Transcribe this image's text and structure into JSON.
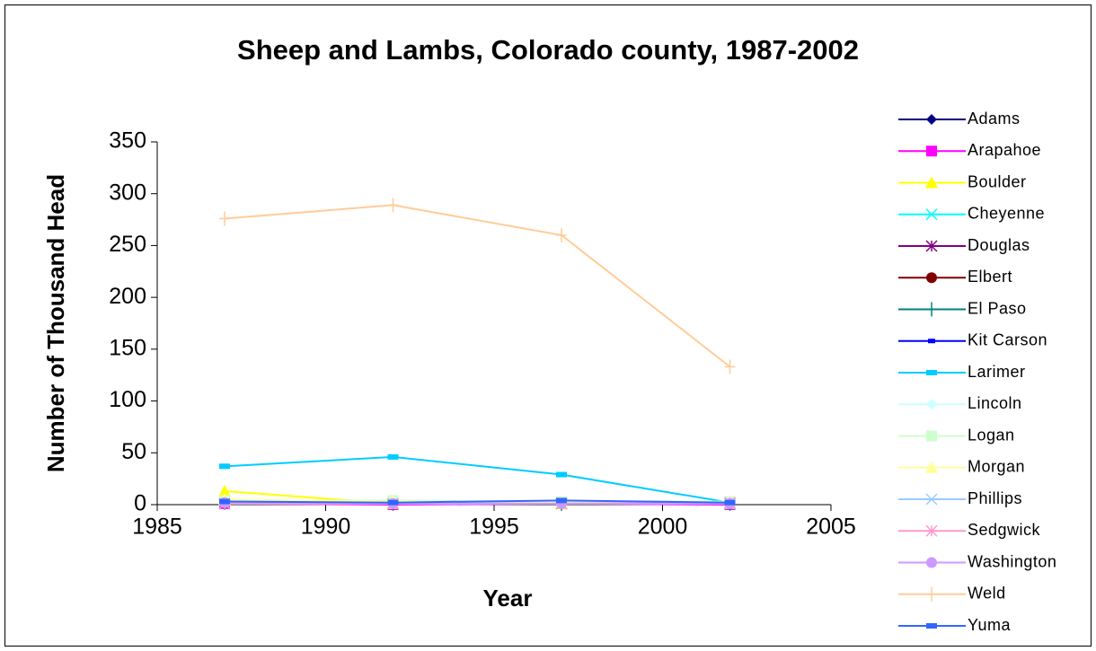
{
  "chart_data": {
    "type": "line",
    "title": "Sheep and Lambs, Colorado county, 1987-2002",
    "x_label": "Year",
    "y_label": "Number of Thousand Head",
    "x": [
      1987,
      1992,
      1997,
      2002
    ],
    "xlim": [
      1985,
      2005
    ],
    "xticks": [
      1985,
      1990,
      1995,
      2000,
      2005
    ],
    "ylim": [
      0,
      350
    ],
    "yticks": [
      0,
      50,
      100,
      150,
      200,
      250,
      300,
      350
    ],
    "grid": false,
    "legend": "right",
    "series": [
      {
        "name": "Adams",
        "color": "#000080",
        "marker": "diamond",
        "values": [
          2,
          1,
          1,
          1
        ]
      },
      {
        "name": "Arapahoe",
        "color": "#FF00FF",
        "marker": "square",
        "values": [
          1,
          0,
          1,
          0
        ]
      },
      {
        "name": "Boulder",
        "color": "#FFFF00",
        "marker": "triangle",
        "values": [
          13,
          1,
          1,
          1
        ]
      },
      {
        "name": "Cheyenne",
        "color": "#00FFFF",
        "marker": "x",
        "values": [
          1,
          1,
          1,
          1
        ]
      },
      {
        "name": "Douglas",
        "color": "#800080",
        "marker": "star",
        "values": [
          1,
          1,
          1,
          1
        ]
      },
      {
        "name": "Elbert",
        "color": "#800000",
        "marker": "circle",
        "values": [
          2,
          2,
          2,
          1
        ]
      },
      {
        "name": "El Paso",
        "color": "#008080",
        "marker": "plus",
        "values": [
          2,
          1,
          1,
          1
        ]
      },
      {
        "name": "Kit Carson",
        "color": "#0000FF",
        "marker": "dash",
        "values": [
          3,
          2,
          3,
          1
        ]
      },
      {
        "name": "Larimer",
        "color": "#00CCFF",
        "marker": "rect",
        "values": [
          37,
          46,
          29,
          2
        ]
      },
      {
        "name": "Lincoln",
        "color": "#CCFFFF",
        "marker": "diamond",
        "values": [
          3,
          2,
          2,
          2
        ]
      },
      {
        "name": "Logan",
        "color": "#CCFFCC",
        "marker": "square",
        "values": [
          4,
          4,
          3,
          3
        ]
      },
      {
        "name": "Morgan",
        "color": "#FFFF99",
        "marker": "triangle",
        "values": [
          5,
          3,
          2,
          2
        ]
      },
      {
        "name": "Phillips",
        "color": "#99CCFF",
        "marker": "x",
        "values": [
          1,
          1,
          1,
          1
        ]
      },
      {
        "name": "Sedgwick",
        "color": "#FF99CC",
        "marker": "star",
        "values": [
          1,
          1,
          1,
          2
        ]
      },
      {
        "name": "Washington",
        "color": "#CC99FF",
        "marker": "circle",
        "values": [
          2,
          1,
          1,
          1
        ]
      },
      {
        "name": "Weld",
        "color": "#FFCC99",
        "marker": "plus",
        "values": [
          276,
          289,
          260,
          133
        ]
      },
      {
        "name": "Yuma",
        "color": "#3366FF",
        "marker": "rect",
        "values": [
          3,
          2,
          4,
          2
        ]
      }
    ]
  }
}
